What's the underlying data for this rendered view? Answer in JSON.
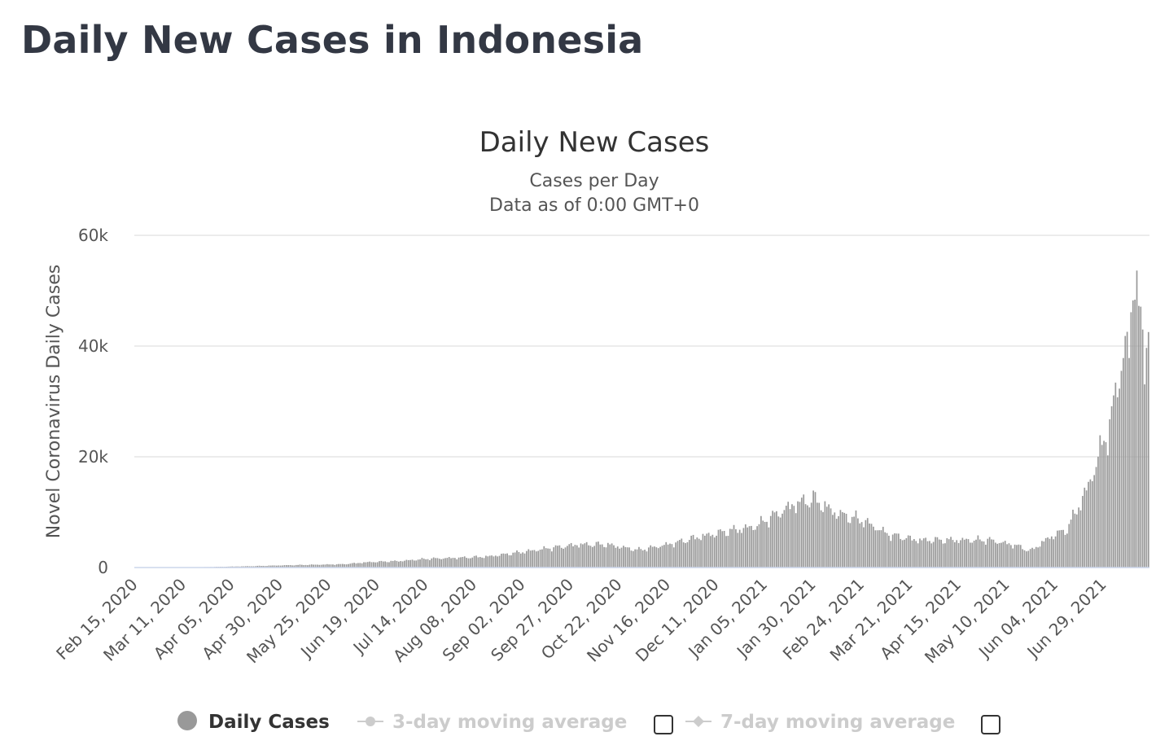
{
  "page": {
    "title": "Daily New Cases in Indonesia"
  },
  "colors": {
    "bar": "#999999",
    "grid": "#e6e6e6",
    "axis": "#ccd6eb",
    "legend_inactive": "#cccccc",
    "title": "#333844"
  },
  "legend": {
    "items": [
      {
        "label": "Daily Cases",
        "active": true,
        "icon": "circle-marker-icon"
      },
      {
        "label": "3-day moving average",
        "active": false,
        "icon": "line-circle-marker-icon",
        "checkbox": "checkbox-icon"
      },
      {
        "label": "7-day moving average",
        "active": false,
        "icon": "line-diamond-marker-icon",
        "checkbox": "checkbox-icon"
      }
    ]
  },
  "chart_data": {
    "type": "bar",
    "title": "Daily New Cases",
    "subtitle_lines": [
      "Cases per Day",
      "Data as of 0:00 GMT+0"
    ],
    "ylabel": "Novel Coronavirus Daily Cases",
    "xlabel": "",
    "ylim": [
      0,
      60000
    ],
    "y_ticks": [
      0,
      20000,
      40000,
      60000
    ],
    "y_tick_labels": [
      "0",
      "20k",
      "40k",
      "60k"
    ],
    "grid": true,
    "legend_position": "bottom",
    "x_start": "2020-02-15",
    "x_end": "2021-07-22",
    "x_tick_labels": [
      "Feb 15, 2020",
      "Mar 11, 2020",
      "Apr 05, 2020",
      "Apr 30, 2020",
      "May 25, 2020",
      "Jun 19, 2020",
      "Jul 14, 2020",
      "Aug 08, 2020",
      "Sep 02, 2020",
      "Sep 27, 2020",
      "Oct 22, 2020",
      "Nov 16, 2020",
      "Dec 11, 2020",
      "Jan 05, 2021",
      "Jan 30, 2021",
      "Feb 24, 2021",
      "Mar 21, 2021",
      "Apr 15, 2021",
      "May 10, 2021",
      "Jun 04, 2021",
      "Jun 29, 2021"
    ],
    "series": [
      {
        "name": "Daily Cases",
        "anchors": [
          [
            "2020-02-15",
            0
          ],
          [
            "2020-03-01",
            0
          ],
          [
            "2020-03-20",
            60
          ],
          [
            "2020-04-01",
            150
          ],
          [
            "2020-04-15",
            250
          ],
          [
            "2020-05-01",
            400
          ],
          [
            "2020-05-15",
            500
          ],
          [
            "2020-06-01",
            600
          ],
          [
            "2020-06-15",
            1000
          ],
          [
            "2020-07-01",
            1200
          ],
          [
            "2020-07-15",
            1600
          ],
          [
            "2020-08-01",
            1800
          ],
          [
            "2020-08-15",
            2000
          ],
          [
            "2020-09-01",
            2800
          ],
          [
            "2020-09-15",
            3500
          ],
          [
            "2020-10-01",
            4200
          ],
          [
            "2020-10-15",
            4200
          ],
          [
            "2020-11-01",
            3200
          ],
          [
            "2020-11-10",
            3800
          ],
          [
            "2020-11-20",
            4500
          ],
          [
            "2020-12-01",
            5500
          ],
          [
            "2020-12-15",
            6500
          ],
          [
            "2020-12-31",
            7500
          ],
          [
            "2021-01-10",
            9500
          ],
          [
            "2021-01-20",
            11500
          ],
          [
            "2021-01-30",
            12500
          ],
          [
            "2021-02-10",
            10000
          ],
          [
            "2021-02-25",
            8500
          ],
          [
            "2021-03-10",
            6000
          ],
          [
            "2021-03-25",
            5000
          ],
          [
            "2021-04-15",
            5000
          ],
          [
            "2021-05-01",
            5000
          ],
          [
            "2021-05-15",
            4000
          ],
          [
            "2021-05-22",
            3000
          ],
          [
            "2021-06-01",
            5500
          ],
          [
            "2021-06-10",
            7000
          ],
          [
            "2021-06-20",
            14000
          ],
          [
            "2021-06-27",
            21000
          ],
          [
            "2021-07-03",
            27000
          ],
          [
            "2021-07-08",
            38000
          ],
          [
            "2021-07-12",
            40000
          ],
          [
            "2021-07-15",
            56000
          ],
          [
            "2021-07-18",
            44000
          ],
          [
            "2021-07-20",
            35000
          ],
          [
            "2021-07-22",
            49000
          ]
        ]
      },
      {
        "name": "3-day moving average",
        "values": []
      },
      {
        "name": "7-day moving average",
        "values": []
      }
    ]
  }
}
